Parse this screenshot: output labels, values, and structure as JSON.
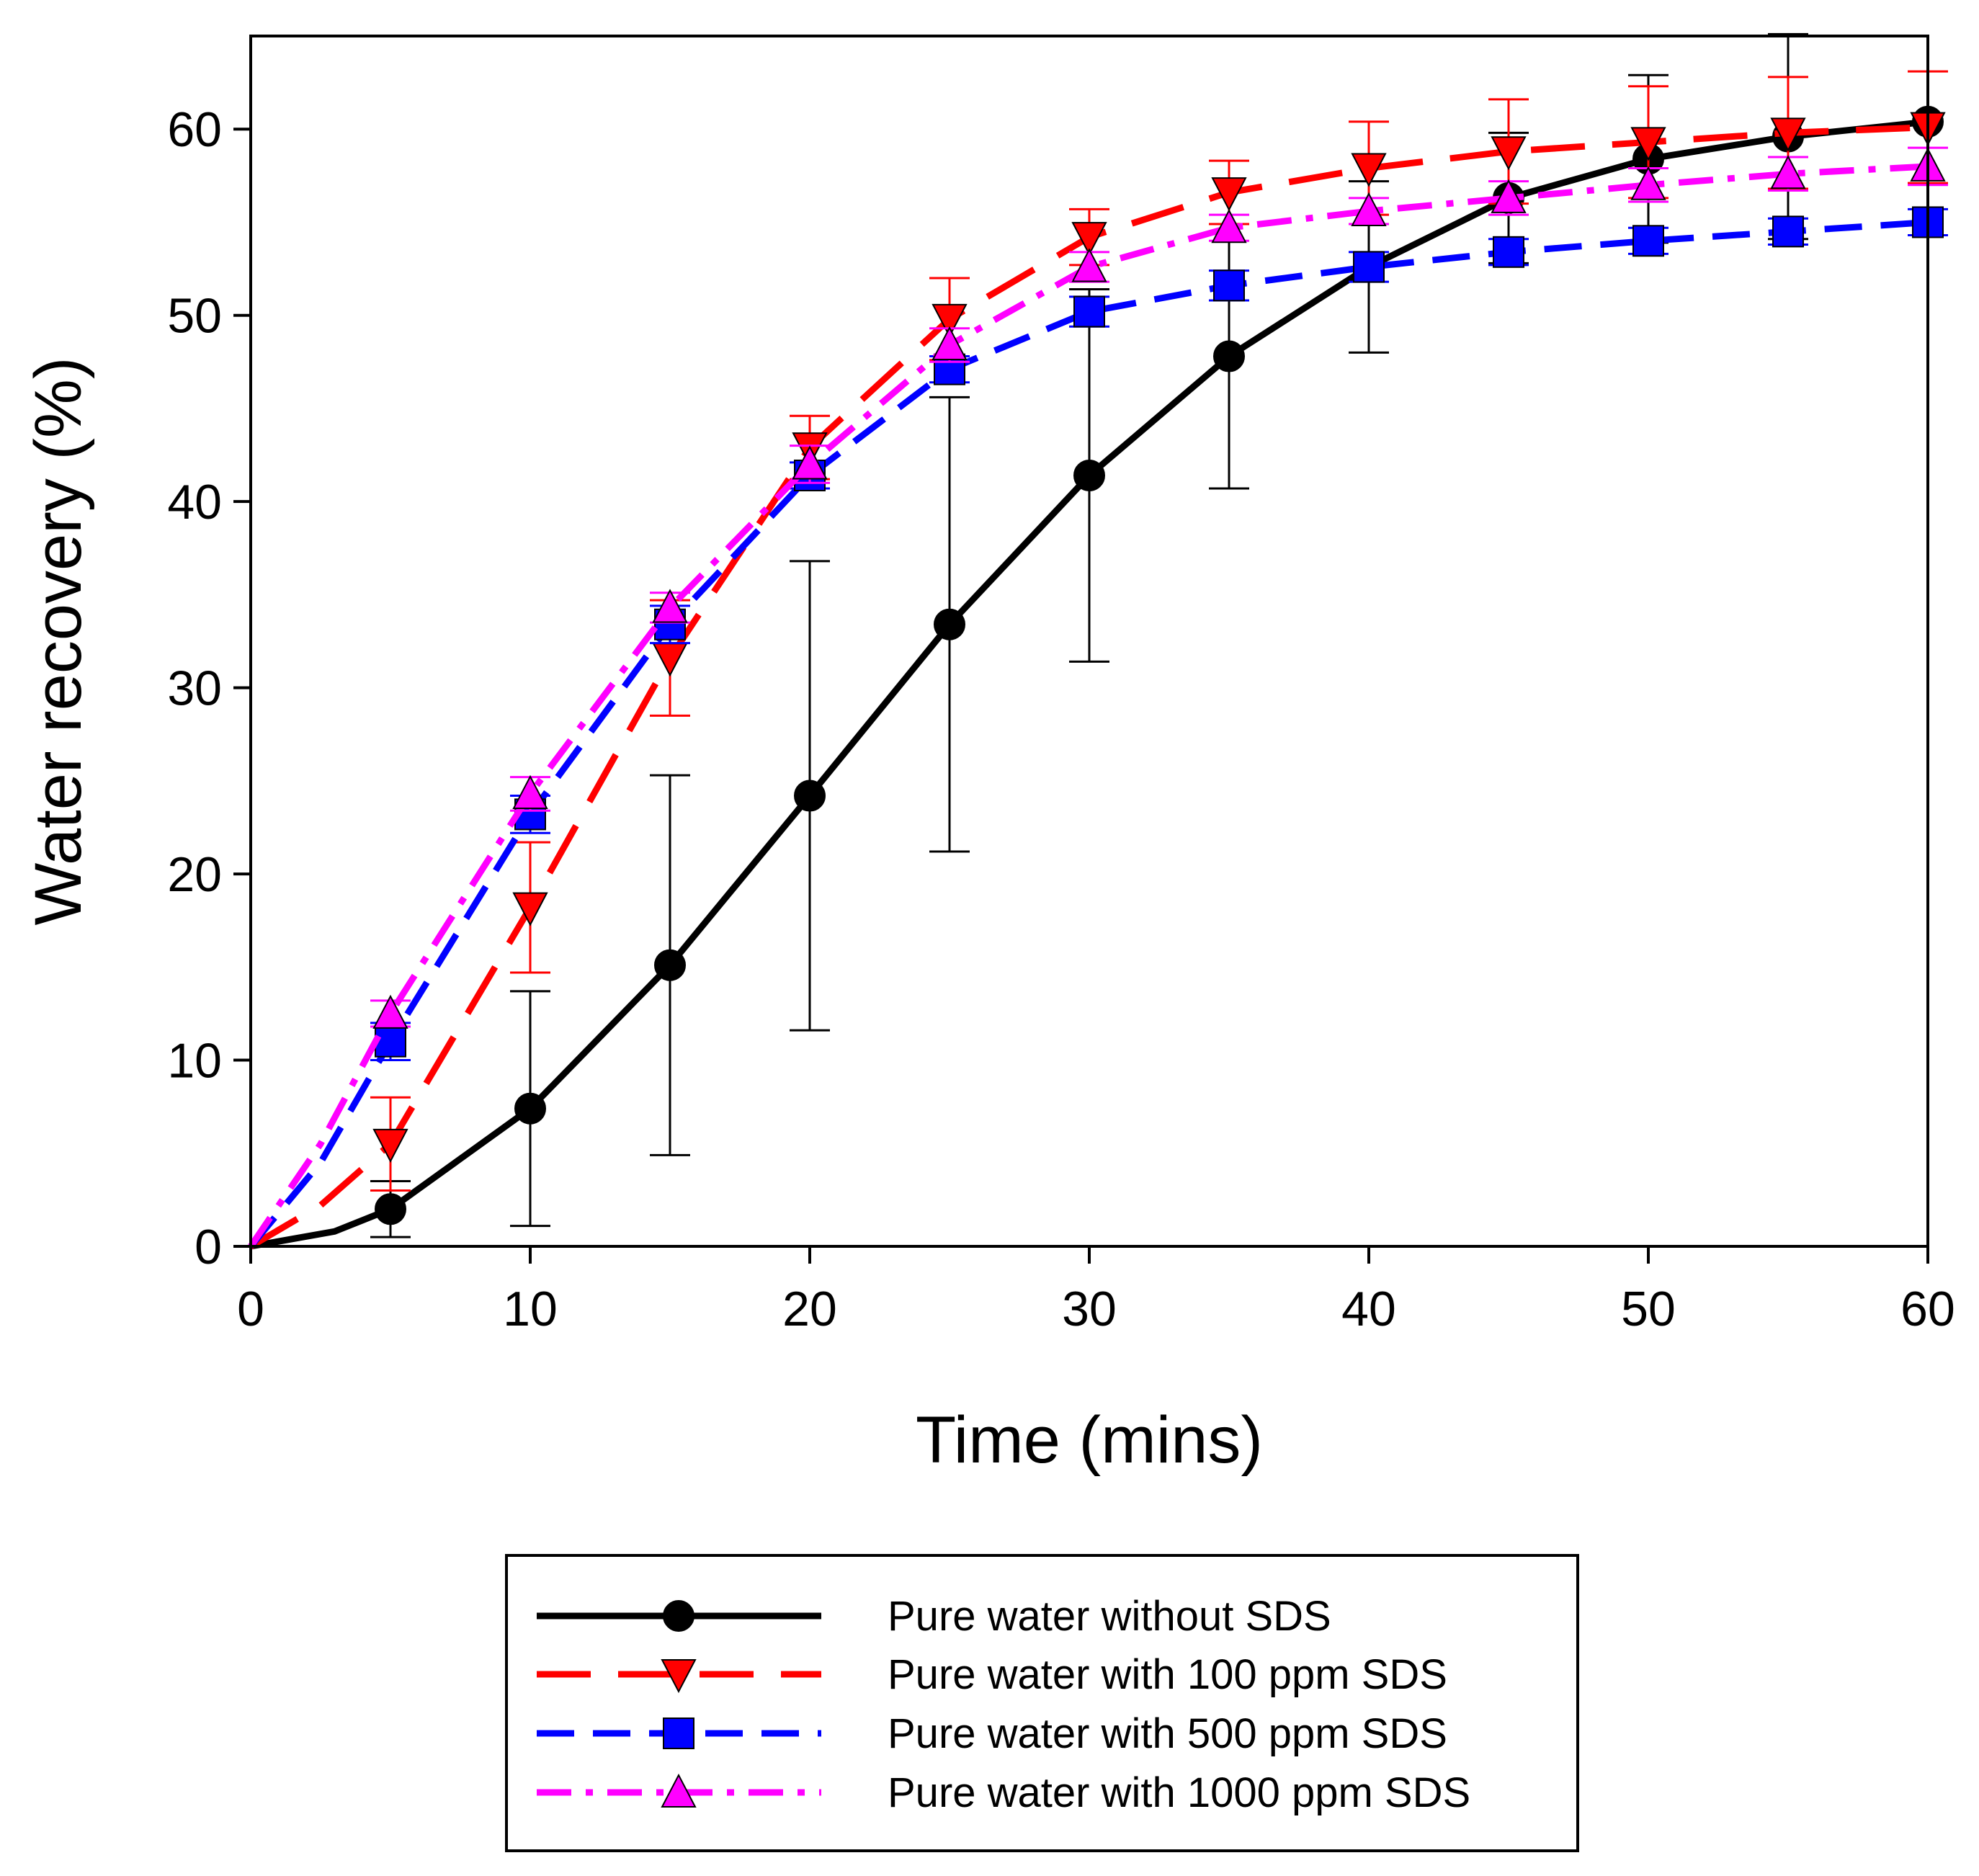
{
  "chart_data": {
    "type": "line",
    "title": "",
    "xlabel": "Time (mins)",
    "ylabel": "Water recovery (%)",
    "xlim": [
      0,
      60
    ],
    "ylim": [
      0,
      65
    ],
    "xticks": [
      0,
      10,
      20,
      30,
      40,
      50,
      60
    ],
    "yticks": [
      0,
      10,
      20,
      30,
      40,
      50,
      60
    ],
    "grid": false,
    "legend_position": "bottom-center",
    "series": [
      {
        "name": "Pure water without SDS",
        "color": "#000000",
        "dash": "solid",
        "marker": "circle",
        "curve": [
          [
            0,
            0
          ],
          [
            3,
            0.8
          ],
          [
            5,
            2
          ],
          [
            10,
            7.4
          ],
          [
            15,
            15.1
          ],
          [
            20,
            24.2
          ],
          [
            25,
            33.4
          ],
          [
            30,
            41.4
          ],
          [
            35,
            47.8
          ],
          [
            40,
            52.6
          ],
          [
            45,
            56.3
          ],
          [
            50,
            58.4
          ],
          [
            55,
            59.6
          ],
          [
            60,
            60.4
          ]
        ],
        "x": [
          5,
          10,
          15,
          20,
          25,
          30,
          35,
          40,
          45,
          50,
          55,
          60
        ],
        "y": [
          2,
          7.4,
          15.1,
          24.2,
          33.4,
          41.4,
          47.8,
          52.6,
          56.3,
          58.4,
          59.6,
          60.4
        ],
        "err": [
          1.5,
          6.3,
          10.2,
          12.6,
          12.2,
          10,
          7.1,
          4.6,
          3.5,
          4.5,
          5.5,
          0
        ]
      },
      {
        "name": "Pure water with 100 ppm SDS",
        "color": "#ff0000",
        "dash": "long-dash",
        "marker": "triangle-down",
        "curve": [
          [
            0,
            0
          ],
          [
            2.5,
            2.2
          ],
          [
            5,
            5.5
          ],
          [
            10,
            18.2
          ],
          [
            15,
            31.6
          ],
          [
            20,
            42.9
          ],
          [
            25,
            49.8
          ],
          [
            30,
            54.2
          ],
          [
            35,
            56.6
          ],
          [
            40,
            57.9
          ],
          [
            45,
            58.8
          ],
          [
            50,
            59.3
          ],
          [
            55,
            59.8
          ],
          [
            60,
            60.1
          ]
        ],
        "x": [
          5,
          10,
          15,
          20,
          25,
          30,
          35,
          40,
          45,
          50,
          55,
          60
        ],
        "y": [
          5.5,
          18.2,
          31.6,
          42.9,
          49.8,
          54.2,
          56.6,
          57.9,
          58.8,
          59.3,
          59.8,
          60.1
        ],
        "err": [
          2.5,
          3.5,
          3.1,
          1.7,
          2.2,
          1.5,
          1.7,
          2.5,
          2.8,
          3,
          3,
          3
        ]
      },
      {
        "name": "Pure water with 500 ppm SDS",
        "color": "#0000ff",
        "dash": "dash",
        "marker": "square",
        "curve": [
          [
            0,
            0
          ],
          [
            2.5,
            4.5
          ],
          [
            5,
            11
          ],
          [
            10,
            23.2
          ],
          [
            15,
            33.4
          ],
          [
            20,
            41.4
          ],
          [
            25,
            47.1
          ],
          [
            30,
            50.2
          ],
          [
            35,
            51.6
          ],
          [
            40,
            52.6
          ],
          [
            45,
            53.4
          ],
          [
            50,
            54
          ],
          [
            55,
            54.5
          ],
          [
            60,
            55
          ]
        ],
        "x": [
          5,
          10,
          15,
          20,
          25,
          30,
          35,
          40,
          45,
          50,
          55,
          60
        ],
        "y": [
          11,
          23.2,
          33.4,
          41.4,
          47.1,
          50.2,
          51.6,
          52.6,
          53.4,
          54,
          54.5,
          55
        ],
        "err": [
          1,
          1,
          1,
          0.7,
          0.7,
          0.8,
          0.8,
          0.8,
          0.7,
          0.7,
          0.7,
          0.7
        ]
      },
      {
        "name": "Pure water with 1000 ppm SDS",
        "color": "#ff00ff",
        "dash": "dash-dot",
        "marker": "triangle-up",
        "curve": [
          [
            0,
            0
          ],
          [
            2.5,
            5.5
          ],
          [
            5,
            12.5
          ],
          [
            10,
            24.3
          ],
          [
            15,
            34.3
          ],
          [
            20,
            42
          ],
          [
            25,
            48.4
          ],
          [
            30,
            52.6
          ],
          [
            35,
            54.7
          ],
          [
            40,
            55.6
          ],
          [
            45,
            56.3
          ],
          [
            50,
            57
          ],
          [
            55,
            57.6
          ],
          [
            60,
            58
          ]
        ],
        "x": [
          5,
          10,
          15,
          20,
          25,
          30,
          35,
          40,
          45,
          50,
          55,
          60
        ],
        "y": [
          12.5,
          24.3,
          34.3,
          42,
          48.4,
          52.6,
          54.7,
          55.6,
          56.3,
          57,
          57.6,
          58
        ],
        "err": [
          0.7,
          0.9,
          0.8,
          1,
          0.9,
          0.8,
          0.7,
          0.7,
          0.9,
          0.9,
          0.9,
          1
        ]
      }
    ]
  }
}
